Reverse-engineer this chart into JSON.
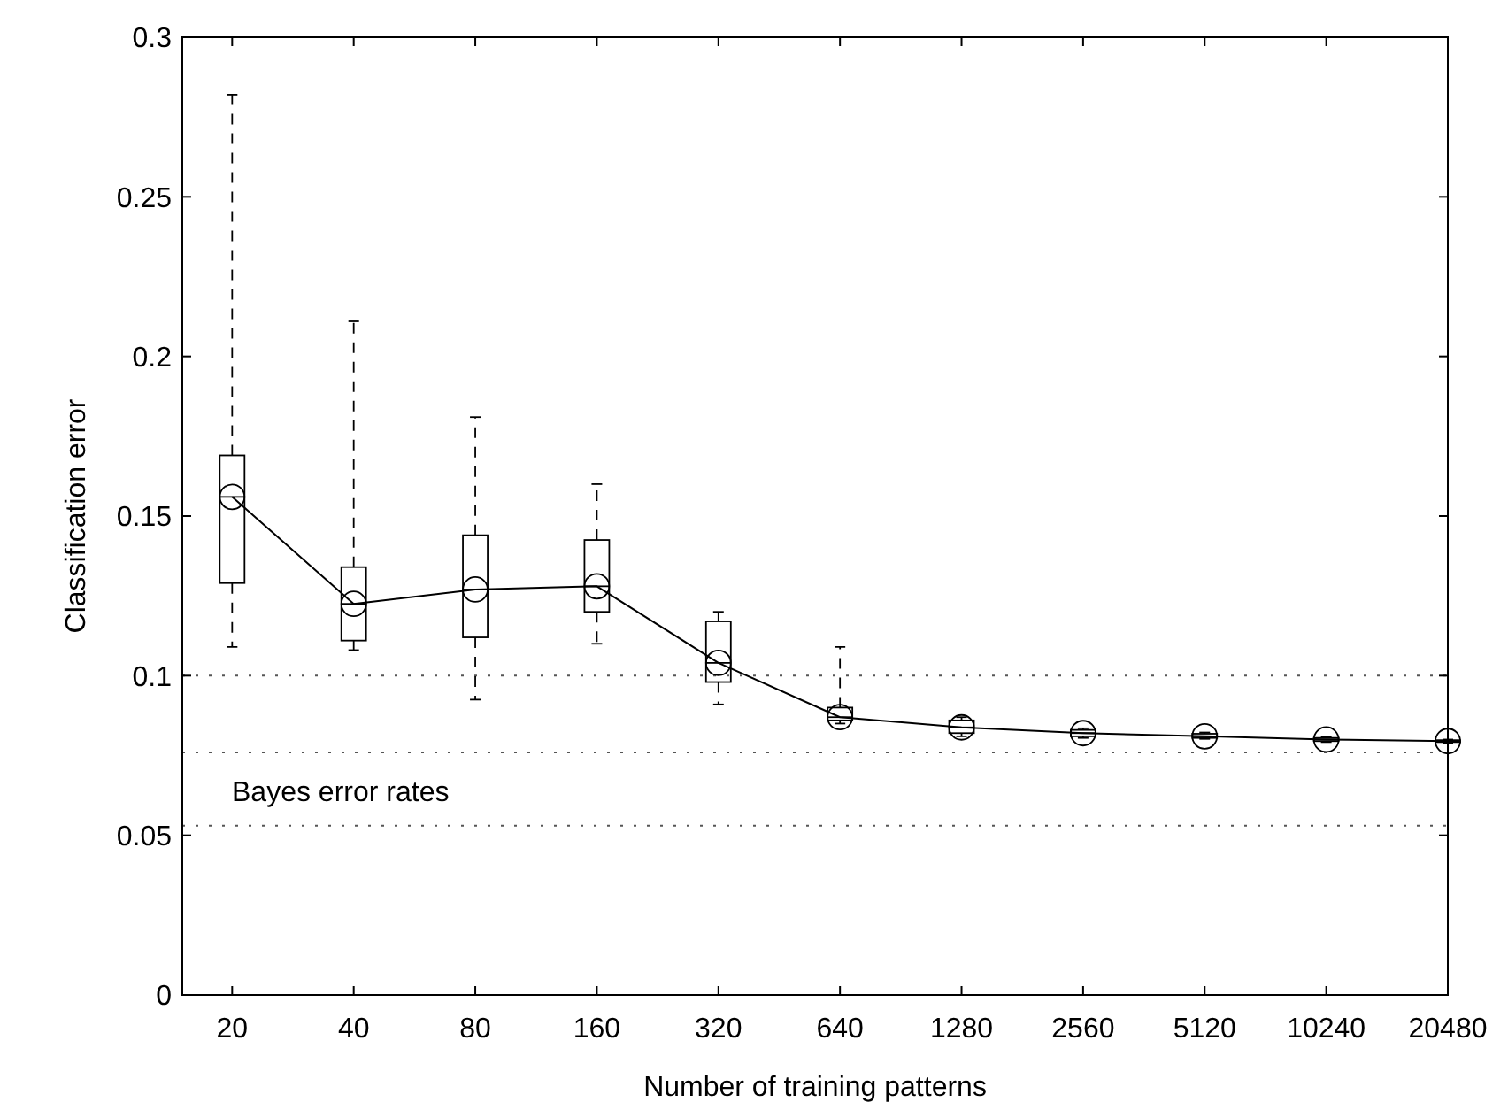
{
  "chart_data": {
    "type": "box",
    "xlabel": "Number of training patterns",
    "ylabel": "Classification error",
    "categories": [
      "20",
      "40",
      "80",
      "160",
      "320",
      "640",
      "1280",
      "2560",
      "5120",
      "10240",
      "20480"
    ],
    "ylim": [
      0,
      0.3
    ],
    "yticks": [
      0,
      0.05,
      0.1,
      0.15,
      0.2,
      0.25,
      0.3
    ],
    "boxes": [
      {
        "low": 0.109,
        "q1": 0.129,
        "median": 0.156,
        "q3": 0.169,
        "high": 0.282
      },
      {
        "low": 0.108,
        "q1": 0.111,
        "median": 0.1225,
        "q3": 0.134,
        "high": 0.211
      },
      {
        "low": 0.0925,
        "q1": 0.112,
        "median": 0.127,
        "q3": 0.144,
        "high": 0.181
      },
      {
        "low": 0.11,
        "q1": 0.12,
        "median": 0.128,
        "q3": 0.1425,
        "high": 0.16
      },
      {
        "low": 0.091,
        "q1": 0.098,
        "median": 0.104,
        "q3": 0.117,
        "high": 0.12
      },
      {
        "low": 0.085,
        "q1": 0.086,
        "median": 0.087,
        "q3": 0.09,
        "high": 0.109
      },
      {
        "low": 0.081,
        "q1": 0.082,
        "median": 0.0838,
        "q3": 0.086,
        "high": 0.087
      },
      {
        "low": 0.0805,
        "q1": 0.081,
        "median": 0.082,
        "q3": 0.083,
        "high": 0.0835
      },
      {
        "low": 0.0802,
        "q1": 0.0805,
        "median": 0.081,
        "q3": 0.0818,
        "high": 0.0822
      },
      {
        "low": 0.0792,
        "q1": 0.0795,
        "median": 0.08,
        "q3": 0.0805,
        "high": 0.0808
      },
      {
        "low": 0.079,
        "q1": 0.0792,
        "median": 0.0795,
        "q3": 0.0798,
        "high": 0.08
      }
    ],
    "series": [
      {
        "type": "line",
        "color": "#000000",
        "marker": "circle",
        "values": [
          0.156,
          0.1225,
          0.127,
          0.128,
          0.104,
          0.087,
          0.0838,
          0.082,
          0.081,
          0.08,
          0.0795
        ]
      }
    ],
    "ref_lines": [
      {
        "axis": "y",
        "value": 0.1,
        "line_style": "dotted"
      },
      {
        "axis": "y",
        "value": 0.076,
        "line_style": "dotted"
      },
      {
        "axis": "y",
        "value": 0.053,
        "line_style": "dotted"
      }
    ],
    "annotations": [
      "Bayes error rates"
    ]
  }
}
